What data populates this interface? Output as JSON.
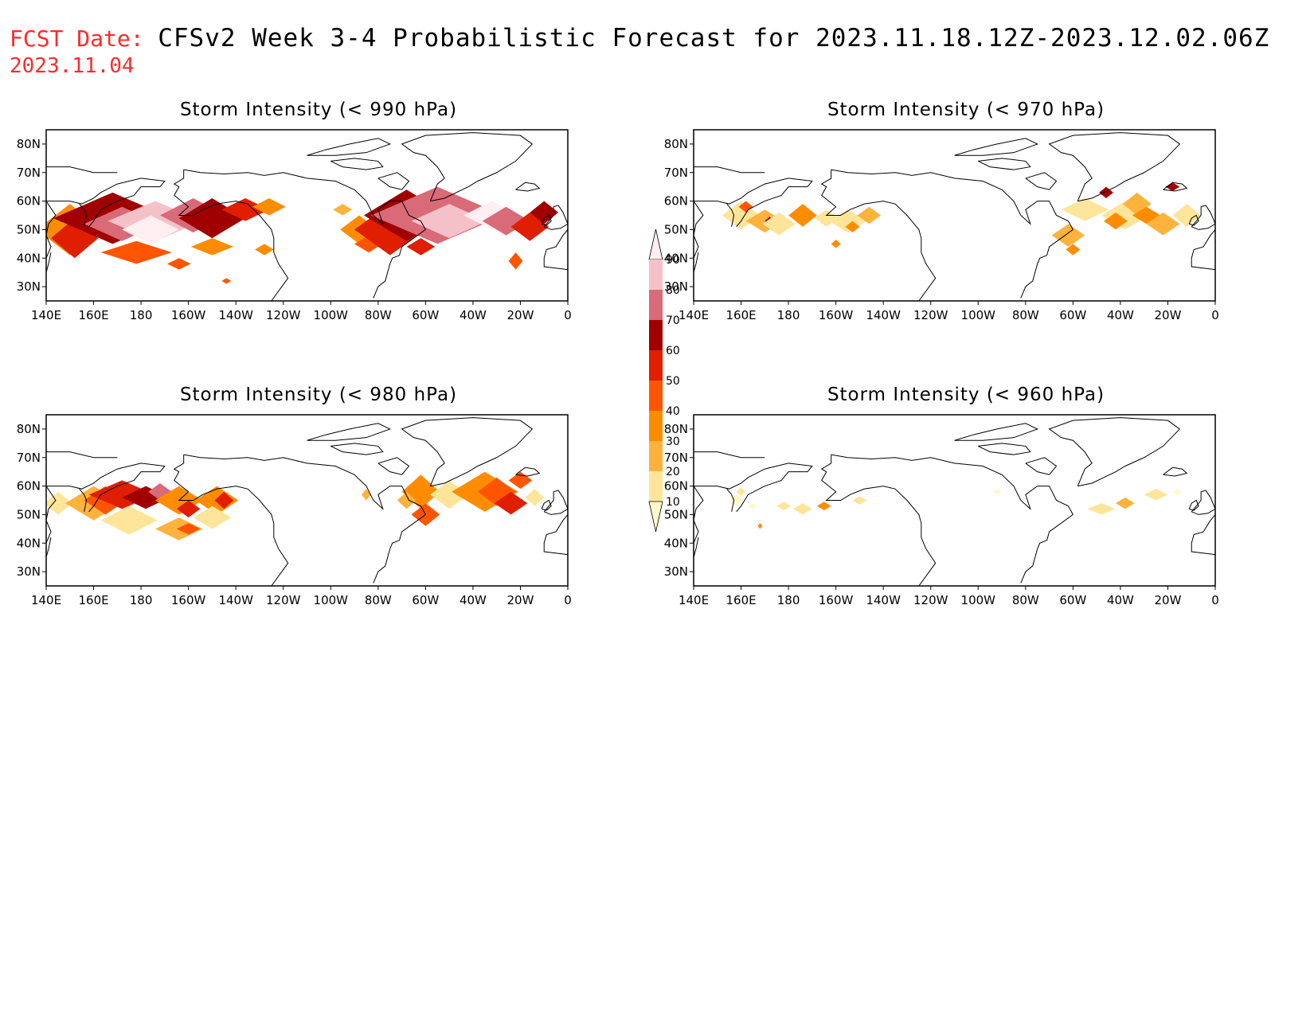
{
  "header": {
    "fcst_label": "FCST Date:",
    "fcst_date": "2023.11.04",
    "title": "CFSv2 Week 3-4 Probabilistic Forecast for 2023.11.18.12Z-2023.12.02.06Z"
  },
  "axes": {
    "lon_labels": [
      "140E",
      "160E",
      "180",
      "160W",
      "140W",
      "120W",
      "100W",
      "80W",
      "60W",
      "40W",
      "20W",
      "0"
    ],
    "lat_labels": [
      "80N",
      "70N",
      "60N",
      "50N",
      "40N",
      "30N"
    ]
  },
  "panels": [
    {
      "title": "Storm Intensity (< 990 hPa)",
      "level": 990
    },
    {
      "title": "Storm Intensity (< 970 hPa)",
      "level": 970
    },
    {
      "title": "Storm Intensity (< 980 hPa)",
      "level": 980
    },
    {
      "title": "Storm Intensity (< 960 hPa)",
      "level": 960
    }
  ],
  "colorbar": {
    "levels": [
      "10",
      "20",
      "30",
      "40",
      "50",
      "60",
      "70",
      "80",
      "90"
    ],
    "colors": [
      "#fff8c8",
      "#ffe59a",
      "#ffb23c",
      "#ff8c00",
      "#ff5500",
      "#e01e00",
      "#a00000",
      "#d96a78",
      "#f5c1c8",
      "#ffeef2"
    ]
  }
}
